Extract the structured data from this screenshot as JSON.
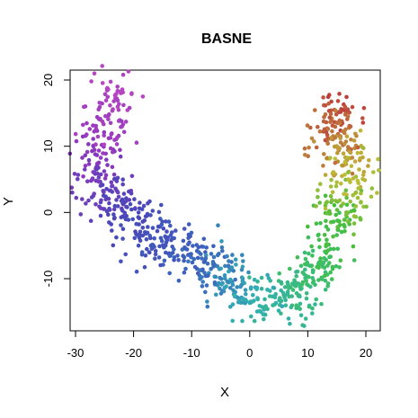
{
  "chart_data": {
    "type": "scatter",
    "title": "BASNE",
    "xlabel": "X",
    "ylabel": "Y",
    "xlim": [
      -30,
      20
    ],
    "ylim": [
      -18,
      21
    ],
    "x_ticks": [
      -30,
      -20,
      -10,
      0,
      10,
      20
    ],
    "y_ticks": [
      -10,
      0,
      10,
      20
    ],
    "grid": false,
    "legend": false,
    "color_scheme": "rainbow gradient along the curve: purple/magenta at upper-left, blue, teal, green, yellow-olive, to red-brown at upper-right",
    "colors": {
      "start": "#b040c0",
      "mid_blue": "#4050c0",
      "teal": "#30b0b0",
      "green": "#40c040",
      "olive": "#c0b030",
      "end": "#c04040"
    },
    "curve_path": [
      {
        "x": -23,
        "y": 19
      },
      {
        "x": -24,
        "y": 14
      },
      {
        "x": -27,
        "y": 9
      },
      {
        "x": -26,
        "y": 4
      },
      {
        "x": -22,
        "y": 0
      },
      {
        "x": -19,
        "y": -3
      },
      {
        "x": -14,
        "y": -4
      },
      {
        "x": -10,
        "y": -7
      },
      {
        "x": -6,
        "y": -9
      },
      {
        "x": -2,
        "y": -11
      },
      {
        "x": 1,
        "y": -13
      },
      {
        "x": 5,
        "y": -14
      },
      {
        "x": 9,
        "y": -11
      },
      {
        "x": 13,
        "y": -6
      },
      {
        "x": 15,
        "y": -1
      },
      {
        "x": 17,
        "y": 4
      },
      {
        "x": 16,
        "y": 9
      },
      {
        "x": 14,
        "y": 13
      },
      {
        "x": 16,
        "y": 16
      }
    ],
    "point_count": 1000
  }
}
